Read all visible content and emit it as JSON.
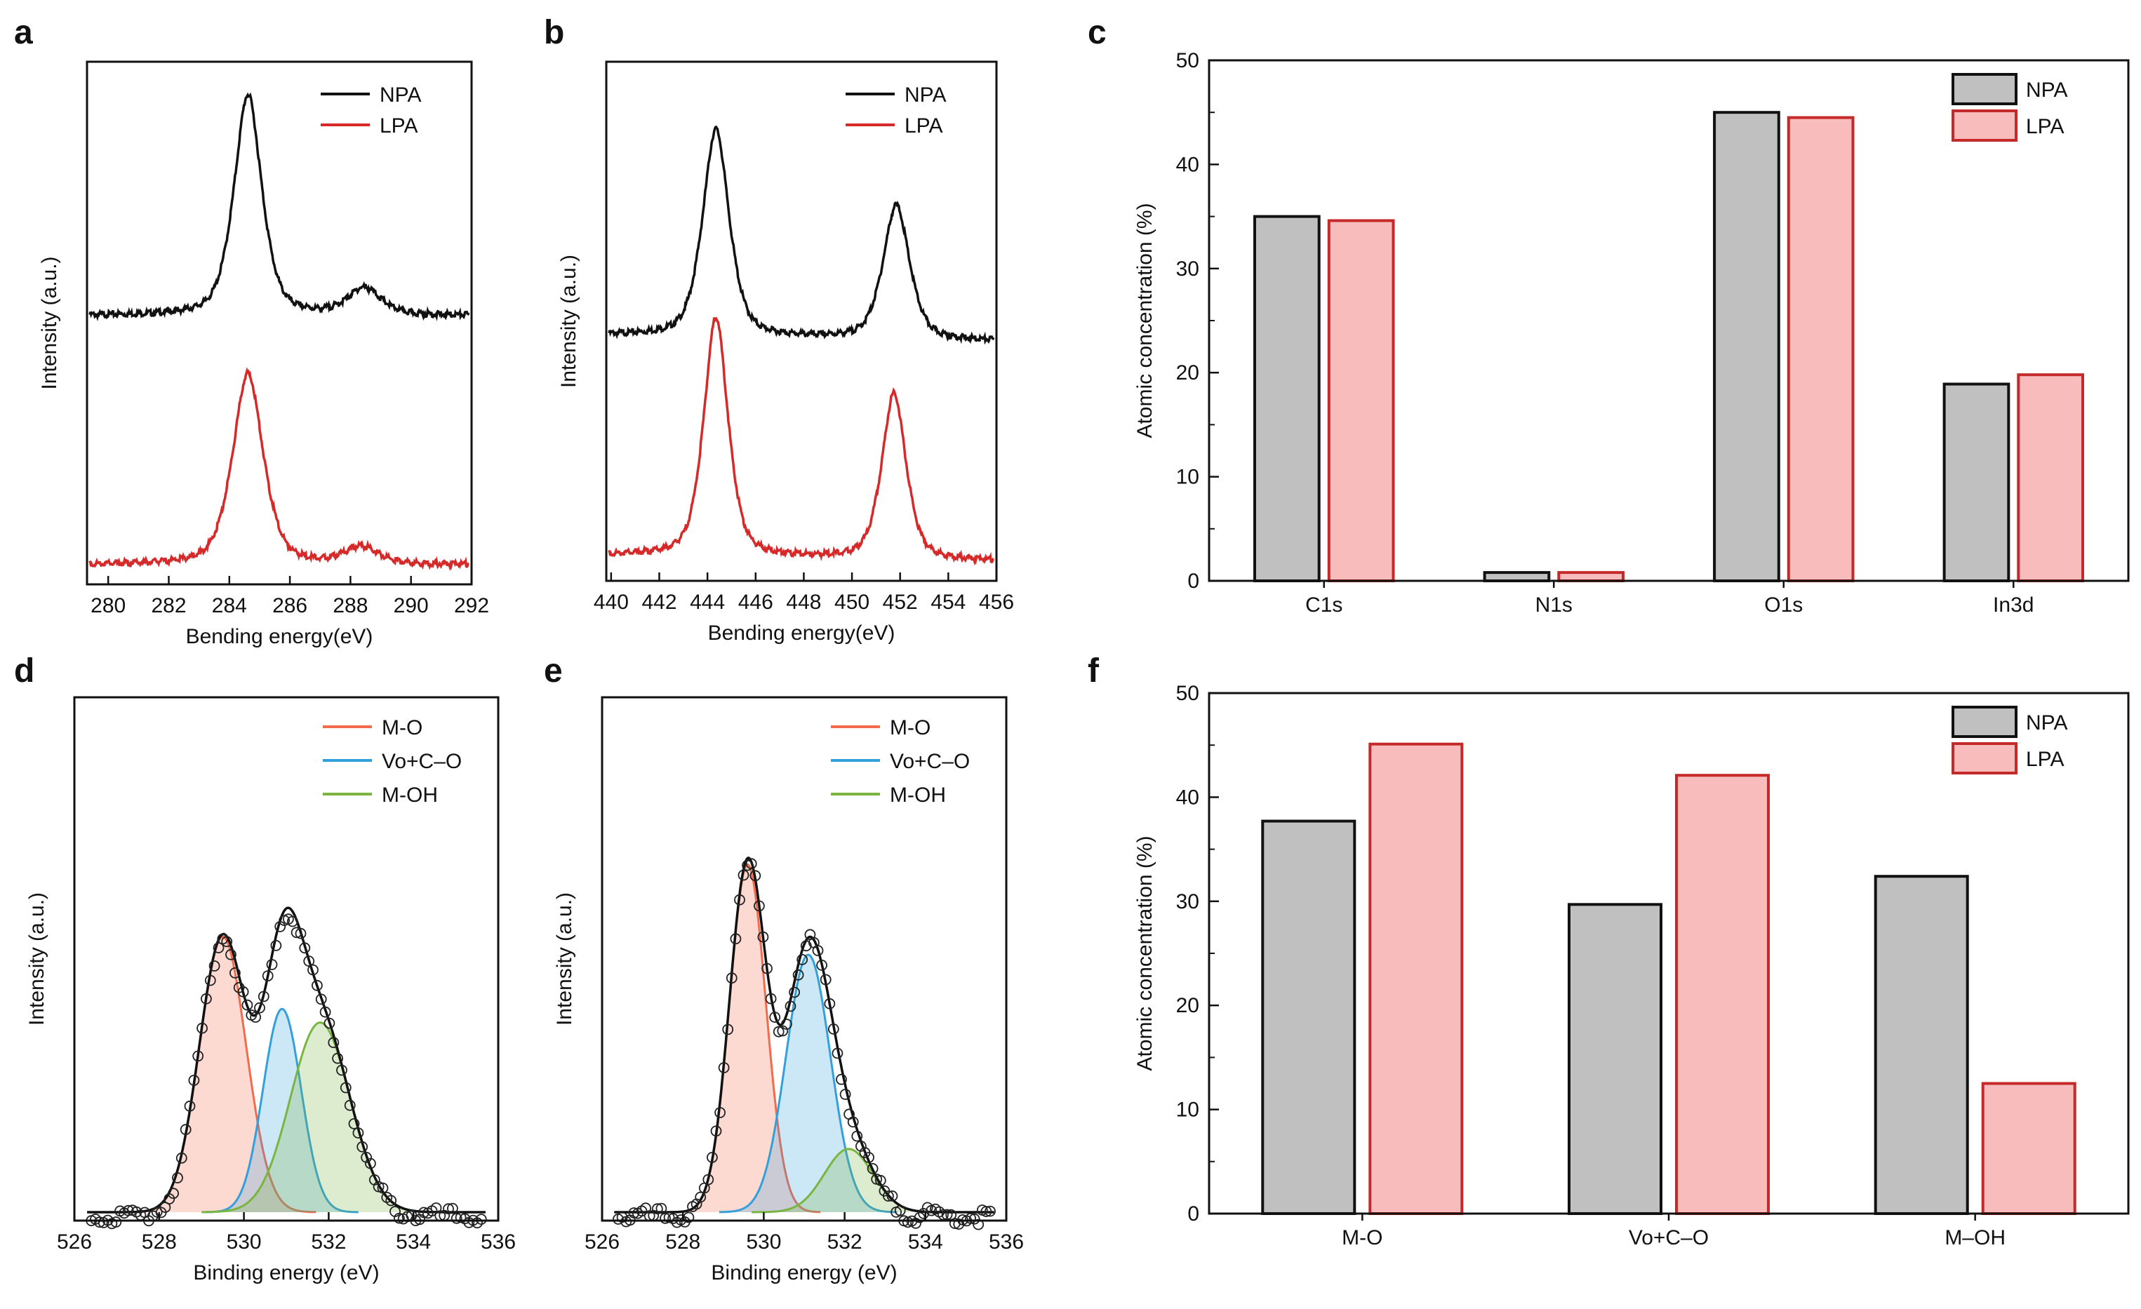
{
  "figure": {
    "colors": {
      "npa_line": "#111111",
      "lpa_line": "#d62a2a",
      "npa_bar": "#c0c0c0",
      "lpa_bar": "#f9bcbc",
      "lpa_bar_edge": "#c42a2a",
      "mo": "#f26b4d",
      "vo": "#33a0dc",
      "moh": "#79b540",
      "marker": "#222222"
    }
  },
  "chart_data": [
    {
      "panel": "a",
      "type": "line",
      "xlabel": "Bending energy(eV)",
      "ylabel": "Intensity (a.u.)",
      "xlim": [
        279.3,
        292
      ],
      "xticks": [
        "280",
        "282",
        "284",
        "286",
        "288",
        "290",
        "292"
      ],
      "legend": [
        "NPA",
        "LPA"
      ],
      "legend_position": "top-right",
      "series": [
        {
          "name": "NPA",
          "color": "#111111",
          "offset": 1.0,
          "baseline": 0.0,
          "peaks": [
            {
              "center": 284.6,
              "height": 0.9,
              "width": 0.5
            },
            {
              "center": 288.5,
              "height": 0.11,
              "width": 0.6
            }
          ]
        },
        {
          "name": "LPA",
          "color": "#d62a2a",
          "offset": 0.0,
          "baseline": 0.0,
          "peaks": [
            {
              "center": 284.6,
              "height": 0.78,
              "width": 0.55
            },
            {
              "center": 288.4,
              "height": 0.07,
              "width": 0.6
            }
          ]
        }
      ]
    },
    {
      "panel": "b",
      "type": "line",
      "xlabel": "Bending energy(eV)",
      "ylabel": "Intensity (a.u.)",
      "xlim": [
        439.8,
        456
      ],
      "xticks": [
        "440",
        "442",
        "444",
        "446",
        "448",
        "450",
        "452",
        "454",
        "456"
      ],
      "legend": [
        "NPA",
        "LPA"
      ],
      "legend_position": "top-right",
      "series": [
        {
          "name": "NPA",
          "color": "#111111",
          "offset": 0.95,
          "baseline": 0.05,
          "peaks": [
            {
              "center": 444.3,
              "height": 0.85,
              "width": 0.6
            },
            {
              "center": 451.9,
              "height": 0.55,
              "width": 0.6
            }
          ]
        },
        {
          "name": "LPA",
          "color": "#d62a2a",
          "offset": 0.0,
          "baseline": 0.05,
          "peaks": [
            {
              "center": 444.3,
              "height": 0.98,
              "width": 0.55
            },
            {
              "center": 451.8,
              "height": 0.68,
              "width": 0.55
            }
          ]
        }
      ]
    },
    {
      "panel": "c",
      "type": "bar",
      "title": "",
      "xlabel": "",
      "ylabel": "Atomic concentration (%)",
      "ylim": [
        0,
        50
      ],
      "yticks": [
        0,
        10,
        20,
        30,
        40,
        50
      ],
      "categories": [
        "C1s",
        "N1s",
        "O1s",
        "In3d"
      ],
      "legend_position": "top-right",
      "series": [
        {
          "name": "NPA",
          "values": [
            35.0,
            0.8,
            45.0,
            18.9
          ]
        },
        {
          "name": "LPA",
          "values": [
            34.6,
            0.8,
            44.5,
            19.8
          ]
        }
      ]
    },
    {
      "panel": "d",
      "type": "line",
      "xlabel": "Binding energy (eV)",
      "ylabel": "Intensity (a.u.)",
      "xlim": [
        526,
        536
      ],
      "xticks": [
        "526",
        "528",
        "530",
        "532",
        "534",
        "536"
      ],
      "legend": [
        "M-O",
        "Vo+C–O",
        "M-OH"
      ],
      "legend_position": "top-right",
      "components": [
        {
          "name": "M-O",
          "center": 529.5,
          "height": 0.61,
          "width": 0.55
        },
        {
          "name": "Vo+C–O",
          "center": 530.9,
          "height": 0.45,
          "width": 0.45
        },
        {
          "name": "M-OH",
          "center": 531.8,
          "height": 0.42,
          "width": 0.7
        }
      ],
      "series": [
        {
          "name": "Envelope",
          "color": "#111111"
        },
        {
          "name": "Measured",
          "marker": "open-circle"
        }
      ]
    },
    {
      "panel": "e",
      "type": "line",
      "xlabel": "Binding energy (eV)",
      "ylabel": "Intensity (a.u.)",
      "xlim": [
        526,
        536
      ],
      "xticks": [
        "526",
        "528",
        "530",
        "532",
        "534",
        "536"
      ],
      "legend": [
        "M-O",
        "Vo+C–O",
        "M-OH"
      ],
      "legend_position": "top-right",
      "components": [
        {
          "name": "M-O",
          "center": 529.6,
          "height": 0.77,
          "width": 0.45
        },
        {
          "name": "Vo+C–O",
          "center": 531.1,
          "height": 0.57,
          "width": 0.55
        },
        {
          "name": "M-OH",
          "center": 532.1,
          "height": 0.14,
          "width": 0.6
        }
      ],
      "series": [
        {
          "name": "Envelope",
          "color": "#111111"
        },
        {
          "name": "Measured",
          "marker": "open-circle"
        }
      ]
    },
    {
      "panel": "f",
      "type": "bar",
      "title": "",
      "xlabel": "",
      "ylabel": "Atomic concentration (%)",
      "ylim": [
        0,
        50
      ],
      "yticks": [
        0,
        10,
        20,
        30,
        40,
        50
      ],
      "categories": [
        "M-O",
        "Vo+C–O",
        "M–OH"
      ],
      "legend_position": "top-right",
      "series": [
        {
          "name": "NPA",
          "values": [
            37.7,
            29.7,
            32.4
          ]
        },
        {
          "name": "LPA",
          "values": [
            45.1,
            42.1,
            12.5
          ]
        }
      ]
    }
  ]
}
